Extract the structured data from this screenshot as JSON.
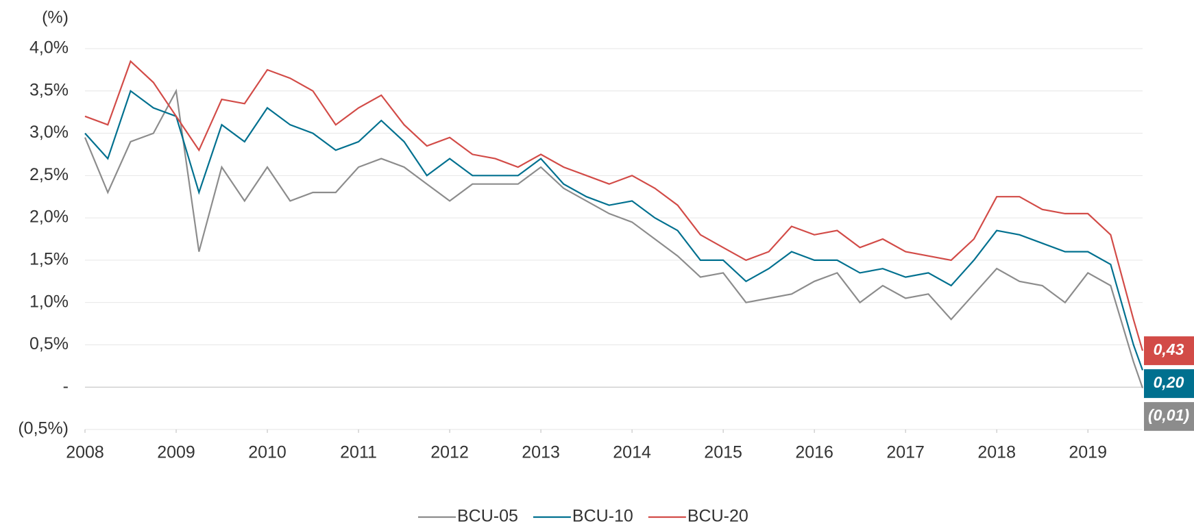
{
  "chart_data": {
    "type": "line",
    "y_label": "(%)",
    "x": [
      2008.0,
      2008.25,
      2008.5,
      2008.75,
      2009.0,
      2009.25,
      2009.5,
      2009.75,
      2010.0,
      2010.25,
      2010.5,
      2010.75,
      2011.0,
      2011.25,
      2011.5,
      2011.75,
      2012.0,
      2012.25,
      2012.5,
      2012.75,
      2013.0,
      2013.25,
      2013.5,
      2013.75,
      2014.0,
      2014.25,
      2014.5,
      2014.75,
      2015.0,
      2015.25,
      2015.5,
      2015.75,
      2016.0,
      2016.25,
      2016.5,
      2016.75,
      2017.0,
      2017.25,
      2017.5,
      2017.75,
      2018.0,
      2018.25,
      2018.5,
      2018.75,
      2019.0,
      2019.25,
      2019.5,
      2019.6
    ],
    "series": [
      {
        "name": "BCU-05",
        "color": "#8c8c8c",
        "values": [
          2.95,
          2.3,
          2.9,
          3.0,
          3.5,
          1.6,
          2.6,
          2.2,
          2.6,
          2.2,
          2.3,
          2.3,
          2.6,
          2.7,
          2.6,
          2.4,
          2.2,
          2.4,
          2.4,
          2.4,
          2.6,
          2.35,
          2.2,
          2.05,
          1.95,
          1.75,
          1.55,
          1.3,
          1.35,
          1.0,
          1.05,
          1.1,
          1.25,
          1.35,
          1.0,
          1.2,
          1.05,
          1.1,
          0.8,
          1.1,
          1.4,
          1.25,
          1.2,
          1.0,
          1.35,
          1.2,
          0.3,
          -0.01
        ],
        "end_label": {
          "value": -0.01,
          "label": "(0,01)"
        }
      },
      {
        "name": "BCU-10",
        "color": "#00708f",
        "values": [
          3.0,
          2.7,
          3.5,
          3.3,
          3.2,
          2.3,
          3.1,
          2.9,
          3.3,
          3.1,
          3.0,
          2.8,
          2.9,
          3.15,
          2.9,
          2.5,
          2.7,
          2.5,
          2.5,
          2.5,
          2.7,
          2.4,
          2.25,
          2.15,
          2.2,
          2.0,
          1.85,
          1.5,
          1.5,
          1.25,
          1.4,
          1.6,
          1.5,
          1.5,
          1.35,
          1.4,
          1.3,
          1.35,
          1.2,
          1.5,
          1.85,
          1.8,
          1.7,
          1.6,
          1.6,
          1.45,
          0.5,
          0.2
        ],
        "end_label": {
          "value": 0.2,
          "label": "0,20"
        }
      },
      {
        "name": "BCU-20",
        "color": "#d24b47",
        "values": [
          3.2,
          3.1,
          3.85,
          3.6,
          3.2,
          2.8,
          3.4,
          3.35,
          3.75,
          3.65,
          3.5,
          3.1,
          3.3,
          3.45,
          3.1,
          2.85,
          2.95,
          2.75,
          2.7,
          2.6,
          2.75,
          2.6,
          2.5,
          2.4,
          2.5,
          2.35,
          2.15,
          1.8,
          1.65,
          1.5,
          1.6,
          1.9,
          1.8,
          1.85,
          1.65,
          1.75,
          1.6,
          1.55,
          1.5,
          1.75,
          2.25,
          2.25,
          2.1,
          2.05,
          2.05,
          1.8,
          0.8,
          0.43
        ],
        "end_label": {
          "value": 0.43,
          "label": "0,43"
        }
      }
    ],
    "xlim": [
      2008,
      2019.6
    ],
    "xticks": [
      2008,
      2009,
      2010,
      2011,
      2012,
      2013,
      2014,
      2015,
      2016,
      2017,
      2018,
      2019
    ],
    "ylim": [
      -0.5,
      4.0
    ],
    "yticks": [
      {
        "value": -0.5,
        "label": "(0,5%)"
      },
      {
        "value": 0,
        "label": "-"
      },
      {
        "value": 0.5,
        "label": "0,5%"
      },
      {
        "value": 1.0,
        "label": "1,0%"
      },
      {
        "value": 1.5,
        "label": "1,5%"
      },
      {
        "value": 2.0,
        "label": "2,0%"
      },
      {
        "value": 2.5,
        "label": "2,5%"
      },
      {
        "value": 3.0,
        "label": "3,0%"
      },
      {
        "value": 3.5,
        "label": "3,5%"
      },
      {
        "value": 4.0,
        "label": "4,0%"
      }
    ],
    "grid": true,
    "legend": "bottom"
  }
}
